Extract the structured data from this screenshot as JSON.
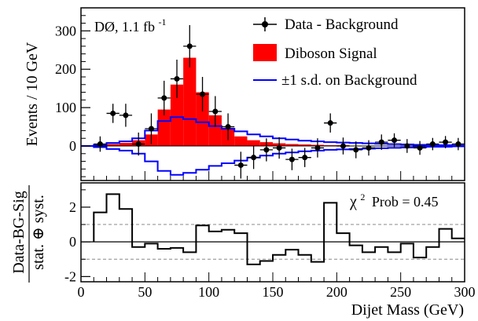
{
  "chart_data": [
    {
      "type": "bar",
      "label_text": "DØ, 1.1 fb",
      "label_sup": "-1",
      "ylabel": "Events / 10 GeV",
      "ylim": [
        -90,
        360
      ],
      "xlim": [
        0,
        300
      ],
      "yticks": [
        "0",
        "100",
        "200",
        "300"
      ],
      "legend": {
        "placement": "top-right",
        "entries": [
          "Data - Background",
          "Diboson Signal",
          "±1 s.d. on Background"
        ]
      },
      "colors": {
        "signal": "#ff0000",
        "band": "#0000ff",
        "data": "#000000"
      },
      "bin_edges": [
        0,
        10,
        20,
        30,
        40,
        50,
        60,
        70,
        80,
        90,
        100,
        110,
        120,
        130,
        140,
        150,
        160,
        170,
        180,
        190,
        200,
        210,
        220,
        230,
        240,
        250,
        260,
        270,
        280,
        290,
        300
      ],
      "series": [
        {
          "name": "Diboson Signal",
          "values": [
            0,
            2,
            5,
            8,
            15,
            30,
            95,
            160,
            230,
            140,
            80,
            45,
            25,
            15,
            10,
            7,
            5,
            4,
            3,
            2,
            2,
            1,
            1,
            1,
            1,
            0,
            0,
            0,
            0,
            0
          ]
        },
        {
          "name": "±1 s.d. on Background",
          "upper": [
            0,
            3,
            8,
            12,
            20,
            40,
            65,
            75,
            70,
            62,
            52,
            45,
            38,
            30,
            25,
            20,
            17,
            14,
            12,
            10,
            9,
            8,
            7,
            6,
            5,
            4,
            3,
            2,
            2,
            1
          ],
          "lower": [
            0,
            -3,
            -8,
            -12,
            -20,
            -40,
            -65,
            -75,
            -70,
            -62,
            -52,
            -45,
            -38,
            -30,
            -25,
            -20,
            -17,
            -14,
            -12,
            -10,
            -9,
            -8,
            -7,
            -6,
            -5,
            -4,
            -3,
            -2,
            -2,
            -1
          ]
        },
        {
          "name": "Data - Background",
          "x": [
            15,
            25,
            35,
            45,
            55,
            65,
            75,
            85,
            95,
            105,
            115,
            125,
            135,
            145,
            155,
            165,
            175,
            185,
            195,
            205,
            215,
            225,
            235,
            245,
            255,
            265,
            275,
            285,
            295
          ],
          "y": [
            5,
            85,
            80,
            5,
            45,
            125,
            175,
            260,
            135,
            90,
            50,
            -50,
            -30,
            -10,
            -5,
            -35,
            -30,
            -5,
            60,
            0,
            -10,
            -5,
            10,
            15,
            0,
            -5,
            5,
            10,
            5
          ],
          "err": [
            20,
            25,
            30,
            30,
            40,
            45,
            50,
            55,
            45,
            40,
            35,
            35,
            30,
            30,
            28,
            28,
            25,
            25,
            25,
            22,
            22,
            20,
            20,
            18,
            18,
            18,
            16,
            16,
            16
          ]
        }
      ]
    },
    {
      "type": "line",
      "ylabel": "Data-BG-Sig",
      "ylabel2": "stat. ⊕ syst.",
      "xlabel": "Dijet Mass (GeV)",
      "ylim": [
        -2.3,
        3.4
      ],
      "xlim": [
        0,
        300
      ],
      "xticks": [
        "0",
        "50",
        "100",
        "150",
        "200",
        "250",
        "300"
      ],
      "yticks": [
        "2",
        "0",
        "-2"
      ],
      "chi2_symbol": "χ",
      "chi2_sup": "2",
      "chi2_text": "Prob = 0.45",
      "series": [
        {
          "name": "Data-BG-Sig",
          "bin_edges": [
            10,
            20,
            30,
            40,
            50,
            60,
            70,
            80,
            90,
            100,
            110,
            120,
            130,
            140,
            150,
            160,
            170,
            180,
            190,
            200,
            210,
            220,
            230,
            240,
            250,
            260,
            270,
            280,
            290,
            300
          ],
          "values": [
            1.7,
            2.75,
            1.9,
            -0.3,
            -0.1,
            -0.4,
            -0.35,
            -0.6,
            0.95,
            0.6,
            0.7,
            0.5,
            -1.3,
            -1.1,
            -0.75,
            -0.45,
            -0.75,
            -1.15,
            2.25,
            0.5,
            -0.2,
            -0.6,
            -0.3,
            -0.6,
            -0.1,
            -0.9,
            -0.3,
            0.75,
            0.2
          ]
        }
      ],
      "reference_lines": [
        1,
        0,
        -1
      ]
    }
  ]
}
